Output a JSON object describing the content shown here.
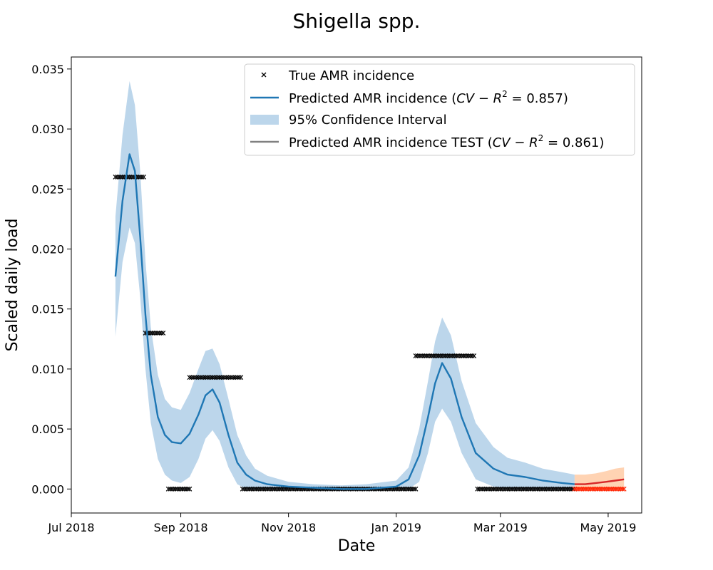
{
  "chart_data": {
    "type": "line",
    "title": "Shigella spp.",
    "xlabel": "Date",
    "ylabel": "Scaled daily load",
    "xlim": [
      "2018-07-01",
      "2019-05-20"
    ],
    "ylim": [
      -0.002,
      0.036
    ],
    "x_ticks": [
      {
        "date": "2018-07-01",
        "label": "Jul 2018"
      },
      {
        "date": "2018-09-01",
        "label": "Sep 2018"
      },
      {
        "date": "2018-11-01",
        "label": "Nov 2018"
      },
      {
        "date": "2019-01-01",
        "label": "Jan 2019"
      },
      {
        "date": "2019-03-01",
        "label": "Mar 2019"
      },
      {
        "date": "2019-05-01",
        "label": "May 2019"
      }
    ],
    "y_ticks": [
      {
        "value": 0.0,
        "label": "0.000"
      },
      {
        "value": 0.005,
        "label": "0.005"
      },
      {
        "value": 0.01,
        "label": "0.010"
      },
      {
        "value": 0.015,
        "label": "0.015"
      },
      {
        "value": 0.02,
        "label": "0.020"
      },
      {
        "value": 0.025,
        "label": "0.025"
      },
      {
        "value": 0.03,
        "label": "0.030"
      },
      {
        "value": 0.035,
        "label": "0.035"
      }
    ],
    "legend": {
      "placement": "top-right",
      "entries": [
        {
          "prefix": "True AMR incidence",
          "metric": "",
          "suffix": ""
        },
        {
          "prefix": "Predicted AMR incidence (",
          "metric": "CV − R",
          "suffix": " = 0.857)"
        },
        {
          "prefix": "95% Confidence Interval",
          "metric": "",
          "suffix": ""
        },
        {
          "prefix": "Predicted AMR incidence TEST (",
          "metric": "CV − R",
          "suffix": " = 0.861)"
        }
      ],
      "superscript": "2"
    },
    "colors": {
      "true": "#000000",
      "true_test": "#ff2200",
      "predicted": "#1f77b4",
      "ci": "#a6c8e4",
      "test_line": "#d62728",
      "test_ci": "#ffc49a",
      "legend_test_line": "#808080"
    },
    "true_incidence": [
      {
        "start": "2018-07-26",
        "end": "2018-08-11",
        "value": 0.026
      },
      {
        "start": "2018-08-12",
        "end": "2018-08-22",
        "value": 0.013
      },
      {
        "start": "2018-08-25",
        "end": "2018-09-06",
        "value": 0.0
      },
      {
        "start": "2018-09-06",
        "end": "2018-10-05",
        "value": 0.0093
      },
      {
        "start": "2018-10-06",
        "end": "2019-01-12",
        "value": 0.0
      },
      {
        "start": "2019-01-12",
        "end": "2019-02-14",
        "value": 0.0111
      },
      {
        "start": "2019-02-16",
        "end": "2019-04-12",
        "value": 0.0
      }
    ],
    "true_incidence_test": [
      {
        "start": "2019-04-12",
        "end": "2019-05-10",
        "value": 0.0
      }
    ],
    "predicted": {
      "x": [
        "2018-07-26",
        "2018-07-30",
        "2018-08-03",
        "2018-08-06",
        "2018-08-09",
        "2018-08-12",
        "2018-08-15",
        "2018-08-19",
        "2018-08-23",
        "2018-08-27",
        "2018-09-01",
        "2018-09-06",
        "2018-09-11",
        "2018-09-15",
        "2018-09-19",
        "2018-09-23",
        "2018-09-28",
        "2018-10-03",
        "2018-10-08",
        "2018-10-13",
        "2018-10-20",
        "2018-11-01",
        "2018-11-15",
        "2018-12-01",
        "2018-12-15",
        "2019-01-01",
        "2019-01-08",
        "2019-01-14",
        "2019-01-19",
        "2019-01-23",
        "2019-01-27",
        "2019-02-01",
        "2019-02-07",
        "2019-02-15",
        "2019-02-25",
        "2019-03-05",
        "2019-03-15",
        "2019-03-25",
        "2019-04-05",
        "2019-04-12"
      ],
      "y": [
        0.0177,
        0.024,
        0.0279,
        0.0265,
        0.021,
        0.0145,
        0.0095,
        0.006,
        0.0045,
        0.0039,
        0.0038,
        0.0046,
        0.0062,
        0.0078,
        0.0083,
        0.0072,
        0.0045,
        0.0022,
        0.0012,
        0.0007,
        0.0004,
        0.0002,
        0.0001,
        0.0,
        0.0,
        0.0002,
        0.0008,
        0.0028,
        0.006,
        0.0088,
        0.0105,
        0.0092,
        0.006,
        0.003,
        0.0017,
        0.0012,
        0.001,
        0.0007,
        0.0005,
        0.0004
      ],
      "lower": [
        0.0127,
        0.0189,
        0.0218,
        0.0205,
        0.016,
        0.01,
        0.0055,
        0.0025,
        0.0012,
        0.0007,
        0.0005,
        0.001,
        0.0025,
        0.0042,
        0.0049,
        0.004,
        0.0018,
        0.0004,
        0.0,
        0.0,
        0.0,
        0.0,
        0.0,
        0.0,
        0.0,
        0.0,
        0.0,
        0.0006,
        0.003,
        0.0056,
        0.0067,
        0.0056,
        0.003,
        0.0008,
        0.0002,
        0.0,
        0.0,
        0.0,
        0.0,
        0.0
      ],
      "upper": [
        0.0227,
        0.0295,
        0.034,
        0.032,
        0.0265,
        0.019,
        0.0135,
        0.0095,
        0.0075,
        0.0068,
        0.0066,
        0.008,
        0.01,
        0.0115,
        0.0117,
        0.0104,
        0.0075,
        0.0045,
        0.0028,
        0.0017,
        0.0011,
        0.0006,
        0.0004,
        0.0003,
        0.0004,
        0.0007,
        0.0018,
        0.005,
        0.009,
        0.0123,
        0.0143,
        0.0128,
        0.009,
        0.0055,
        0.0035,
        0.0026,
        0.0022,
        0.0017,
        0.0014,
        0.0012
      ]
    },
    "predicted_test": {
      "x": [
        "2019-04-12",
        "2019-04-18",
        "2019-04-24",
        "2019-04-30",
        "2019-05-05",
        "2019-05-10"
      ],
      "y": [
        0.0004,
        0.0004,
        0.0005,
        0.0006,
        0.0007,
        0.0008
      ],
      "lower": [
        0.0,
        0.0,
        0.0,
        0.0,
        0.0,
        0.0
      ],
      "upper": [
        0.0012,
        0.0012,
        0.0013,
        0.0015,
        0.0017,
        0.0018
      ]
    }
  }
}
